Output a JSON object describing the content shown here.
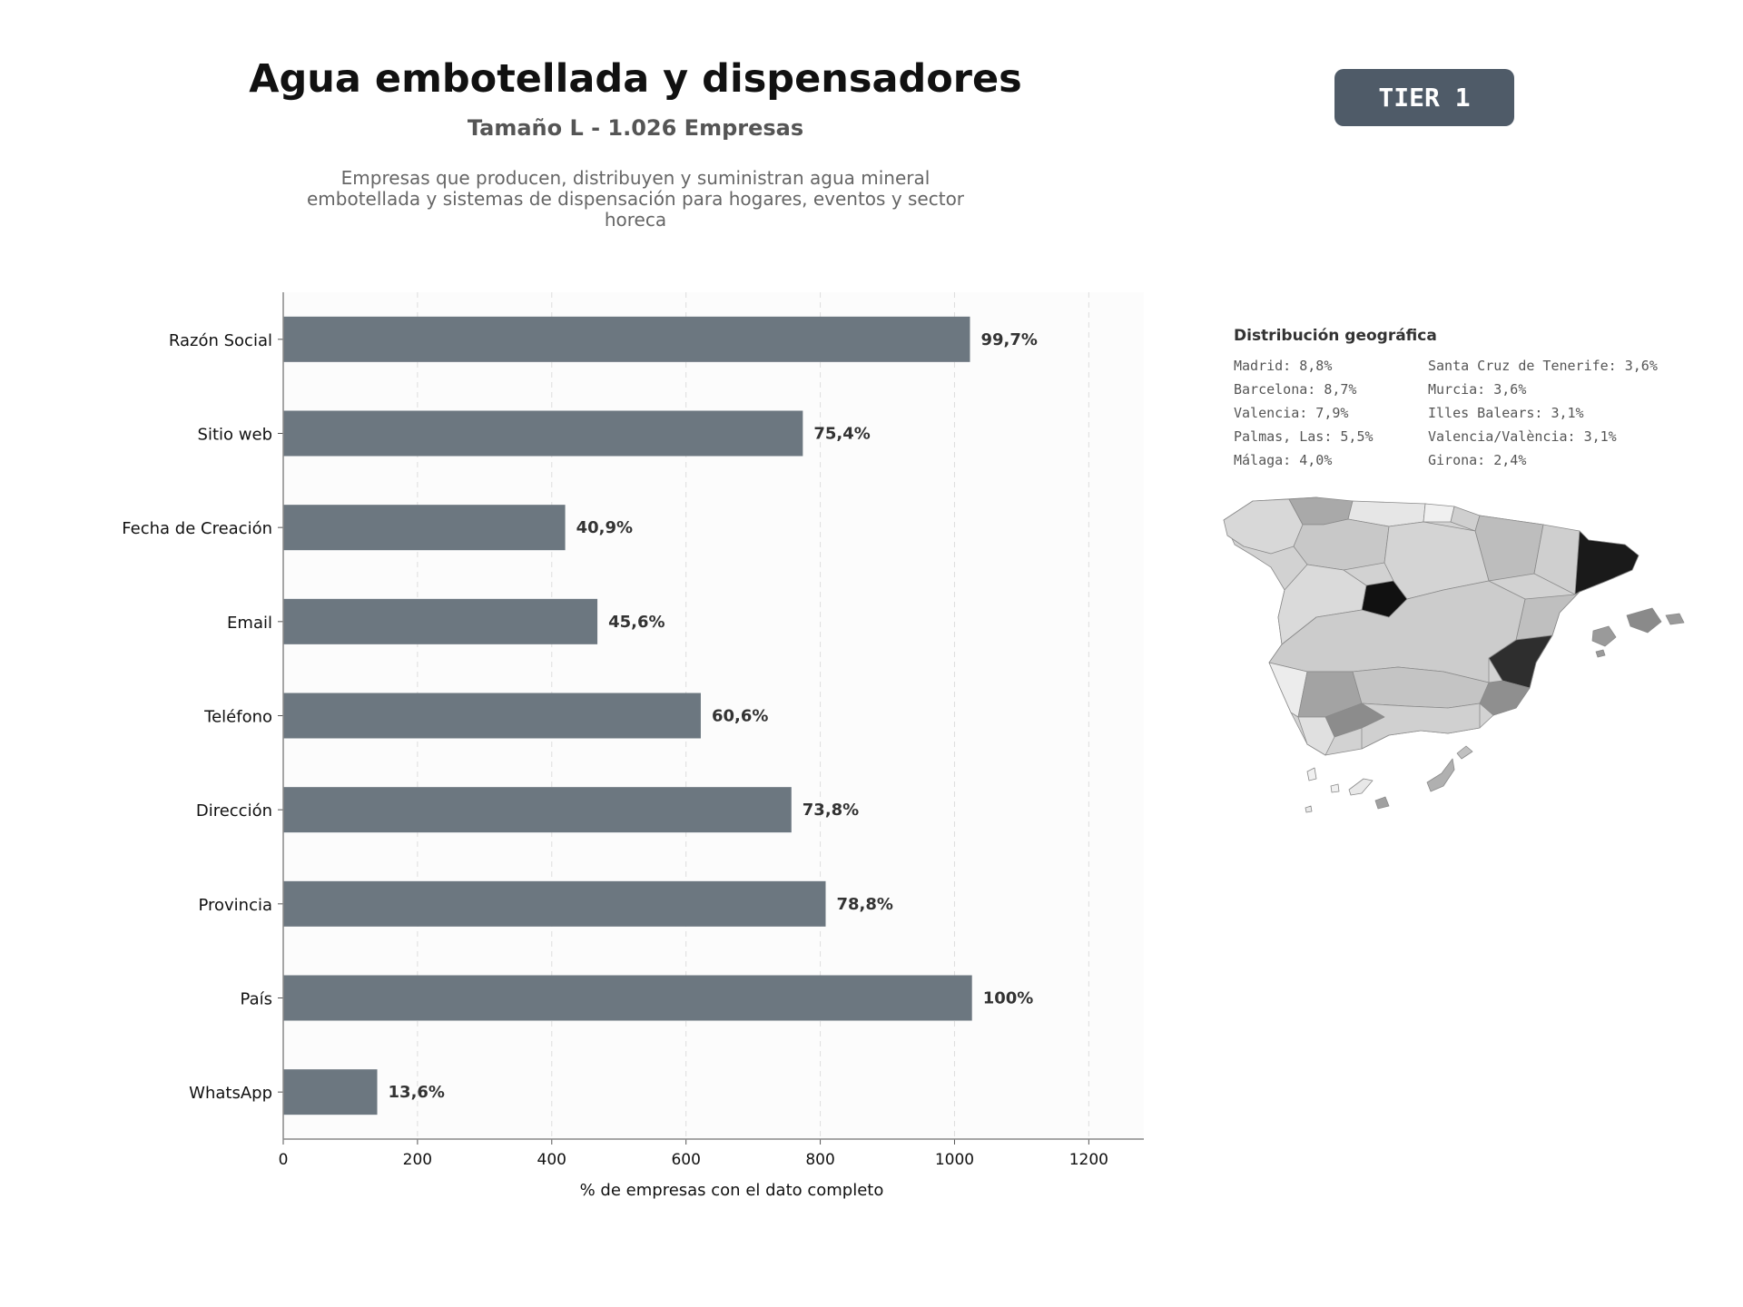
{
  "header": {
    "title": "Agua embotellada y dispensadores",
    "subtitle": "Tamaño L - 1.026 Empresas",
    "description": "Empresas que producen, distribuyen y suministran agua mineral embotellada y sistemas de dispensación para hogares, eventos y sector horeca",
    "tier": "TIER 1"
  },
  "colors": {
    "bar": "#6c7780",
    "tier_badge": "#4f5b68",
    "plot_background": "#fcfcfc"
  },
  "chart_data": {
    "type": "bar",
    "orientation": "horizontal",
    "categories": [
      "Razón Social",
      "Sitio web",
      "Fecha de Creación",
      "Email",
      "Teléfono",
      "Dirección",
      "Provincia",
      "País",
      "WhatsApp"
    ],
    "values": [
      1023,
      774,
      420,
      468,
      622,
      757,
      808,
      1026,
      140
    ],
    "value_labels": [
      "99,7%",
      "75,4%",
      "40,9%",
      "45,6%",
      "60,6%",
      "73,8%",
      "78,8%",
      "100%",
      "13,6%"
    ],
    "xlabel": "% de empresas con el dato completo",
    "ylabel": "",
    "xlim": [
      0,
      1282
    ],
    "xticks": [
      0,
      200,
      400,
      600,
      800,
      1000,
      1200
    ],
    "grid": "vertical dashed"
  },
  "geo": {
    "title": "Distribución geográfica",
    "items": [
      "Madrid: 8,8%",
      "Santa Cruz de Tenerife: 3,6%",
      "Barcelona: 8,7%",
      "Murcia: 3,6%",
      "Valencia: 7,9%",
      "Illes Balears: 3,1%",
      "Palmas, Las: 5,5%",
      "Valencia/València: 3,1%",
      "Málaga: 4,0%",
      "Girona: 2,4%"
    ]
  }
}
